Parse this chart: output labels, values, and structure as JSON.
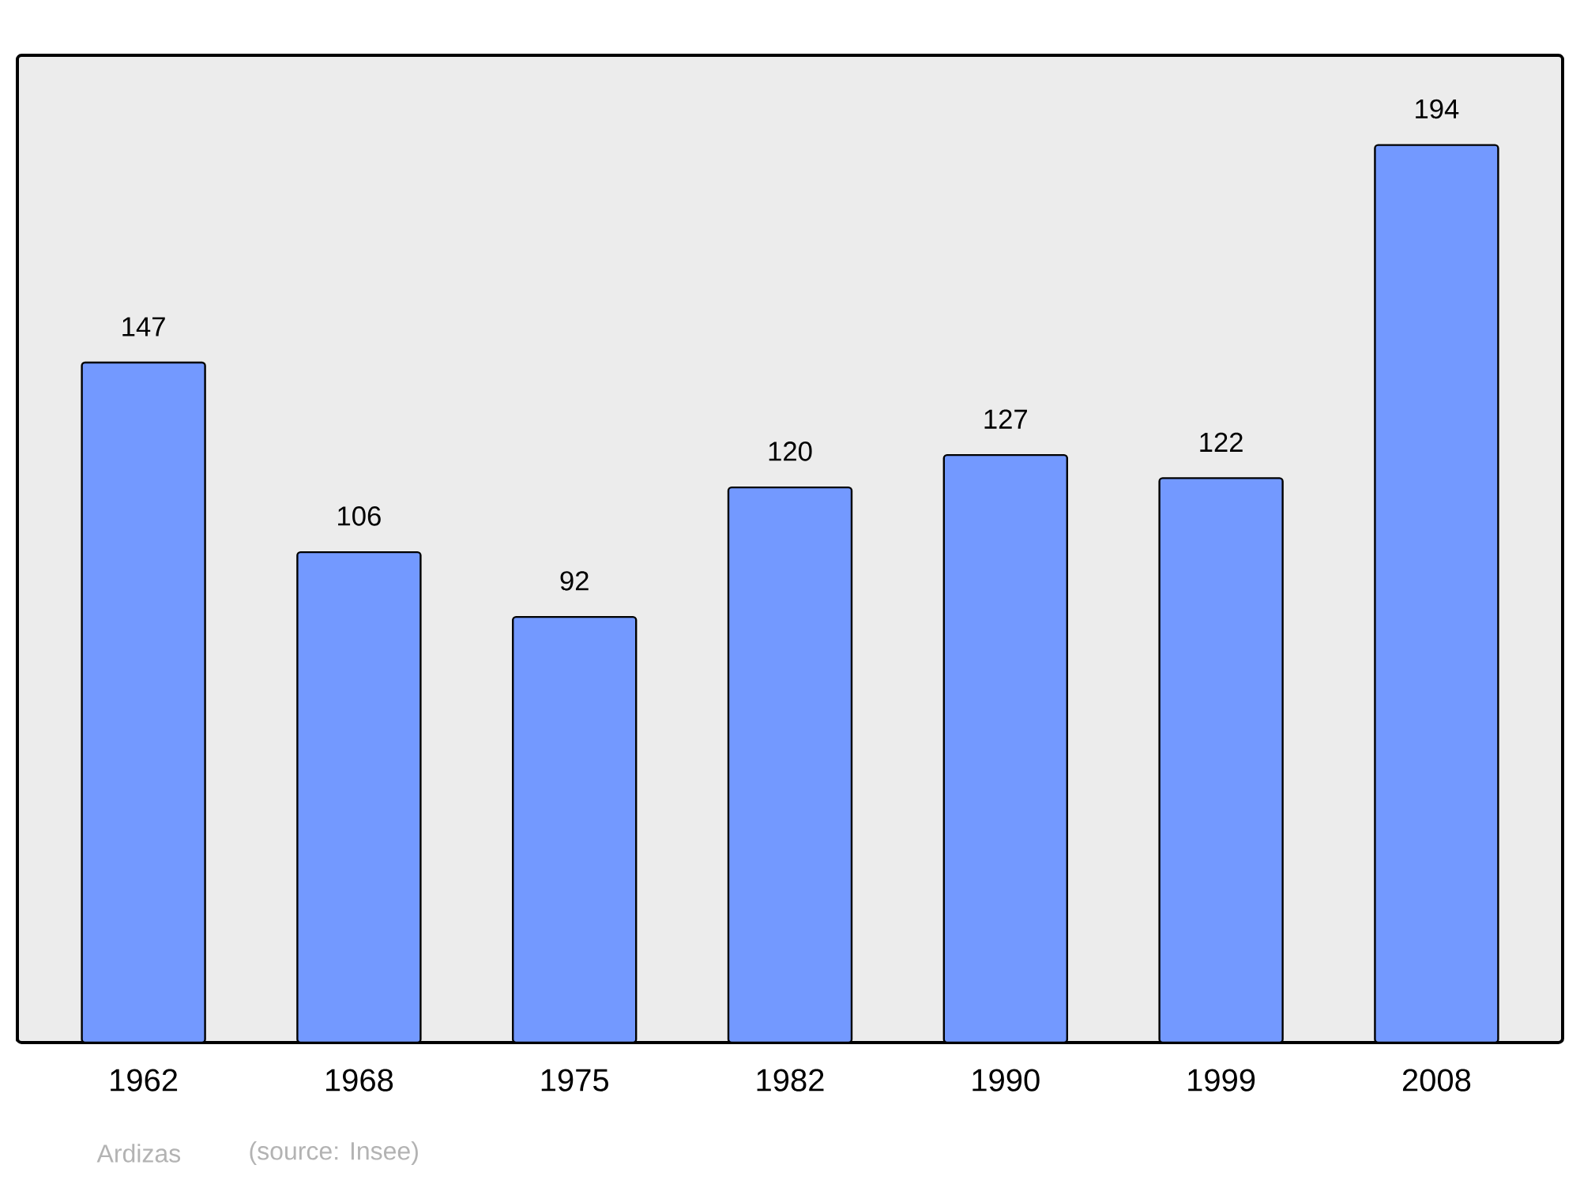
{
  "chart_data": {
    "type": "bar",
    "categories": [
      "1962",
      "1968",
      "1975",
      "1982",
      "1990",
      "1999",
      "2008"
    ],
    "values": [
      147,
      106,
      92,
      120,
      127,
      122,
      194
    ],
    "color": "#7399ff",
    "data_labels": true,
    "grid": false,
    "tick_labels": "x",
    "annotations": [
      "Ardizas",
      "(source: Insee)"
    ]
  }
}
